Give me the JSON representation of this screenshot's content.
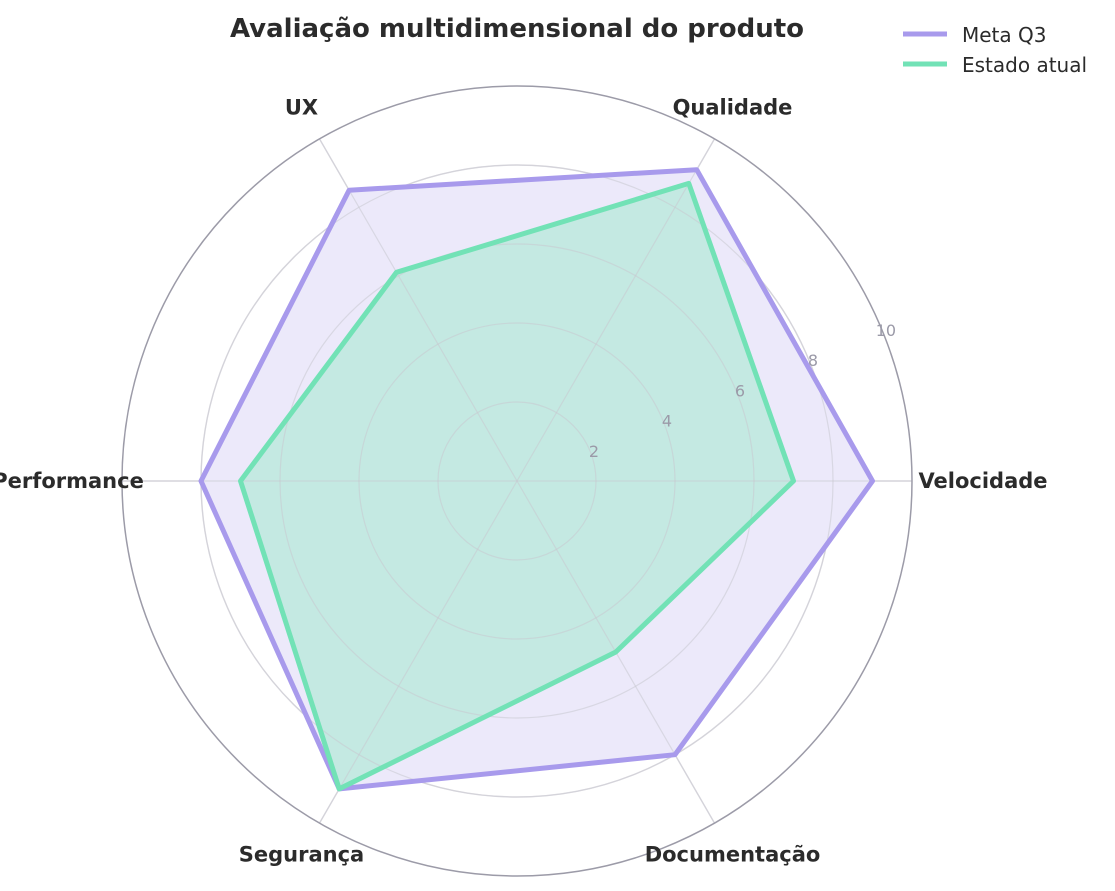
{
  "chart_data": {
    "type": "radar",
    "title": "Avaliação multidimensional do produto",
    "categories": [
      "Velocidade",
      "Qualidade",
      "UX",
      "Performance",
      "Segurança",
      "Documentação"
    ],
    "r_ticks": [
      "2",
      "4",
      "6",
      "8",
      "10"
    ],
    "r_range": [
      0,
      10
    ],
    "grid": true,
    "legend_position": "top-right",
    "series": [
      {
        "name": "Meta Q3",
        "values": [
          9.0,
          9.1,
          8.5,
          8.0,
          9.0,
          8.0
        ],
        "color": "#a89aec",
        "fill": "#ece9fa"
      },
      {
        "name": "Estado atual",
        "values": [
          7.0,
          8.7,
          6.1,
          7.0,
          9.0,
          5.0
        ],
        "color": "#72e2b6",
        "fill": "#c0e9df"
      }
    ]
  }
}
